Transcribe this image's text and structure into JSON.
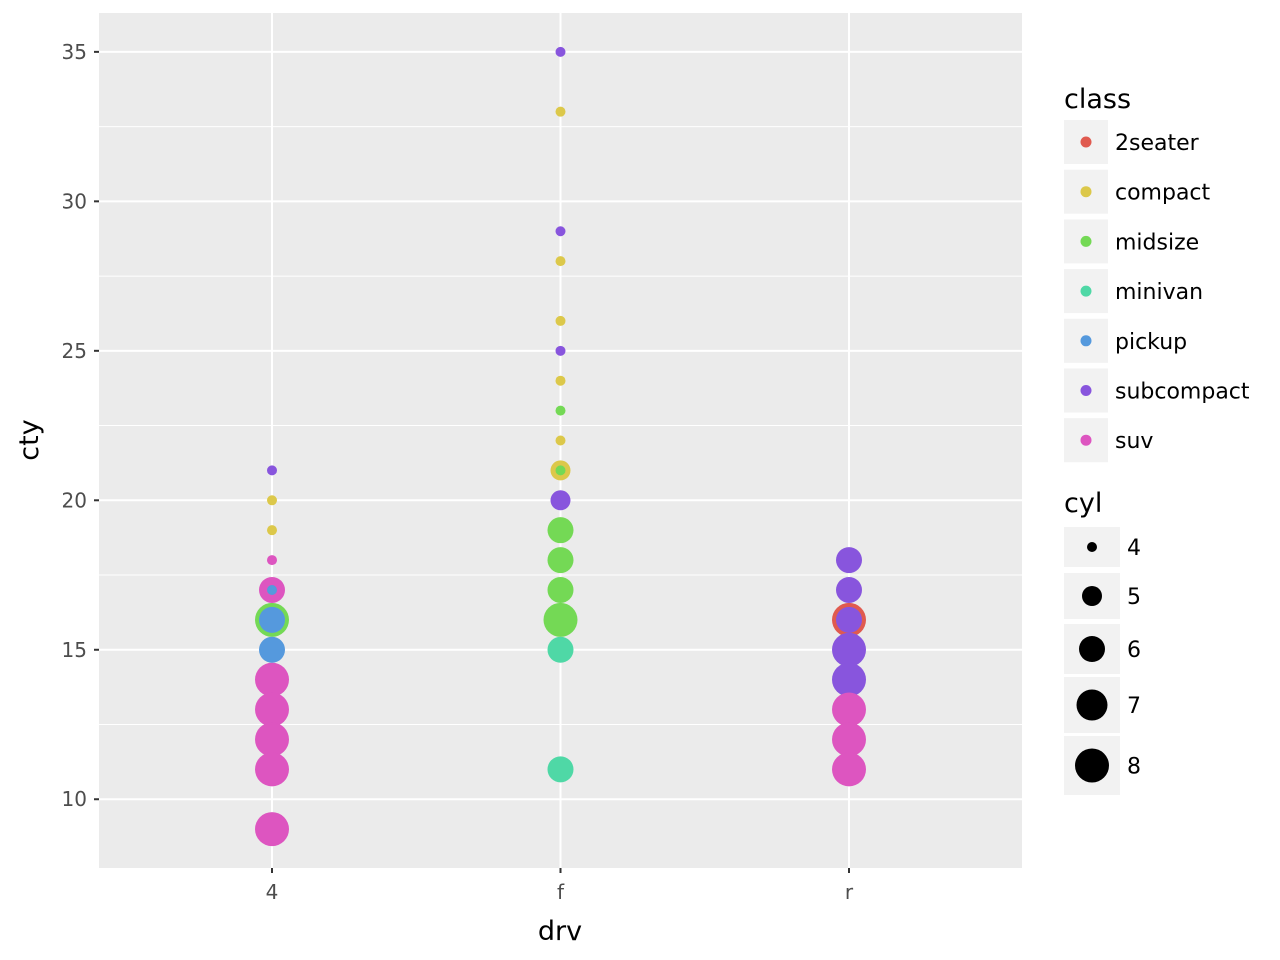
{
  "chart_data": {
    "type": "scatter",
    "xlabel": "drv",
    "ylabel": "cty",
    "categories": [
      "4",
      "f",
      "r"
    ],
    "ylim": [
      7.7,
      36.3
    ],
    "yticks": [
      10,
      15,
      20,
      25,
      30,
      35
    ],
    "grid": true,
    "legend_placement": "right",
    "color_legend": {
      "title": "class",
      "entries": [
        {
          "label": "2seater",
          "color": "#e05a4f"
        },
        {
          "label": "compact",
          "color": "#dcc84a"
        },
        {
          "label": "midsize",
          "color": "#74d955"
        },
        {
          "label": "minivan",
          "color": "#4fd8a6"
        },
        {
          "label": "pickup",
          "color": "#5599dd"
        },
        {
          "label": "subcompact",
          "color": "#8855dd"
        },
        {
          "label": "suv",
          "color": "#dd55c0"
        }
      ]
    },
    "size_legend": {
      "title": "cyl",
      "values": [
        4,
        5,
        6,
        7,
        8
      ]
    },
    "points": [
      {
        "drv": "4",
        "cty": 21,
        "class": "subcompact",
        "cyl": 4
      },
      {
        "drv": "4",
        "cty": 20,
        "class": "compact",
        "cyl": 4
      },
      {
        "drv": "4",
        "cty": 19,
        "class": "compact",
        "cyl": 4
      },
      {
        "drv": "4",
        "cty": 18,
        "class": "suv",
        "cyl": 4
      },
      {
        "drv": "4",
        "cty": 17,
        "class": "pickup",
        "cyl": 4
      },
      {
        "drv": "4",
        "cty": 17,
        "class": "suv",
        "cyl": 6
      },
      {
        "drv": "4",
        "cty": 16,
        "class": "midsize",
        "cyl": 8
      },
      {
        "drv": "4",
        "cty": 16,
        "class": "pickup",
        "cyl": 6
      },
      {
        "drv": "4",
        "cty": 15,
        "class": "pickup",
        "cyl": 6
      },
      {
        "drv": "4",
        "cty": 14,
        "class": "suv",
        "cyl": 8
      },
      {
        "drv": "4",
        "cty": 13,
        "class": "suv",
        "cyl": 8
      },
      {
        "drv": "4",
        "cty": 12,
        "class": "suv",
        "cyl": 8
      },
      {
        "drv": "4",
        "cty": 11,
        "class": "suv",
        "cyl": 8
      },
      {
        "drv": "4",
        "cty": 9,
        "class": "suv",
        "cyl": 8
      },
      {
        "drv": "f",
        "cty": 35,
        "class": "subcompact",
        "cyl": 4
      },
      {
        "drv": "f",
        "cty": 33,
        "class": "compact",
        "cyl": 4
      },
      {
        "drv": "f",
        "cty": 29,
        "class": "subcompact",
        "cyl": 4
      },
      {
        "drv": "f",
        "cty": 28,
        "class": "compact",
        "cyl": 4
      },
      {
        "drv": "f",
        "cty": 26,
        "class": "compact",
        "cyl": 4
      },
      {
        "drv": "f",
        "cty": 25,
        "class": "subcompact",
        "cyl": 4
      },
      {
        "drv": "f",
        "cty": 24,
        "class": "compact",
        "cyl": 4
      },
      {
        "drv": "f",
        "cty": 23,
        "class": "midsize",
        "cyl": 4
      },
      {
        "drv": "f",
        "cty": 22,
        "class": "compact",
        "cyl": 4
      },
      {
        "drv": "f",
        "cty": 21,
        "class": "compact",
        "cyl": 5
      },
      {
        "drv": "f",
        "cty": 21,
        "class": "midsize",
        "cyl": 4
      },
      {
        "drv": "f",
        "cty": 20,
        "class": "subcompact",
        "cyl": 5
      },
      {
        "drv": "f",
        "cty": 19,
        "class": "midsize",
        "cyl": 6
      },
      {
        "drv": "f",
        "cty": 18,
        "class": "midsize",
        "cyl": 6
      },
      {
        "drv": "f",
        "cty": 17,
        "class": "midsize",
        "cyl": 6
      },
      {
        "drv": "f",
        "cty": 16,
        "class": "midsize",
        "cyl": 8
      },
      {
        "drv": "f",
        "cty": 15,
        "class": "minivan",
        "cyl": 6
      },
      {
        "drv": "f",
        "cty": 11,
        "class": "minivan",
        "cyl": 6
      },
      {
        "drv": "r",
        "cty": 18,
        "class": "subcompact",
        "cyl": 6
      },
      {
        "drv": "r",
        "cty": 17,
        "class": "subcompact",
        "cyl": 6
      },
      {
        "drv": "r",
        "cty": 16,
        "class": "2seater",
        "cyl": 8
      },
      {
        "drv": "r",
        "cty": 16,
        "class": "subcompact",
        "cyl": 6
      },
      {
        "drv": "r",
        "cty": 15,
        "class": "subcompact",
        "cyl": 8
      },
      {
        "drv": "r",
        "cty": 14,
        "class": "subcompact",
        "cyl": 8
      },
      {
        "drv": "r",
        "cty": 13,
        "class": "suv",
        "cyl": 8
      },
      {
        "drv": "r",
        "cty": 12,
        "class": "suv",
        "cyl": 8
      },
      {
        "drv": "r",
        "cty": 11,
        "class": "suv",
        "cyl": 8
      }
    ]
  }
}
